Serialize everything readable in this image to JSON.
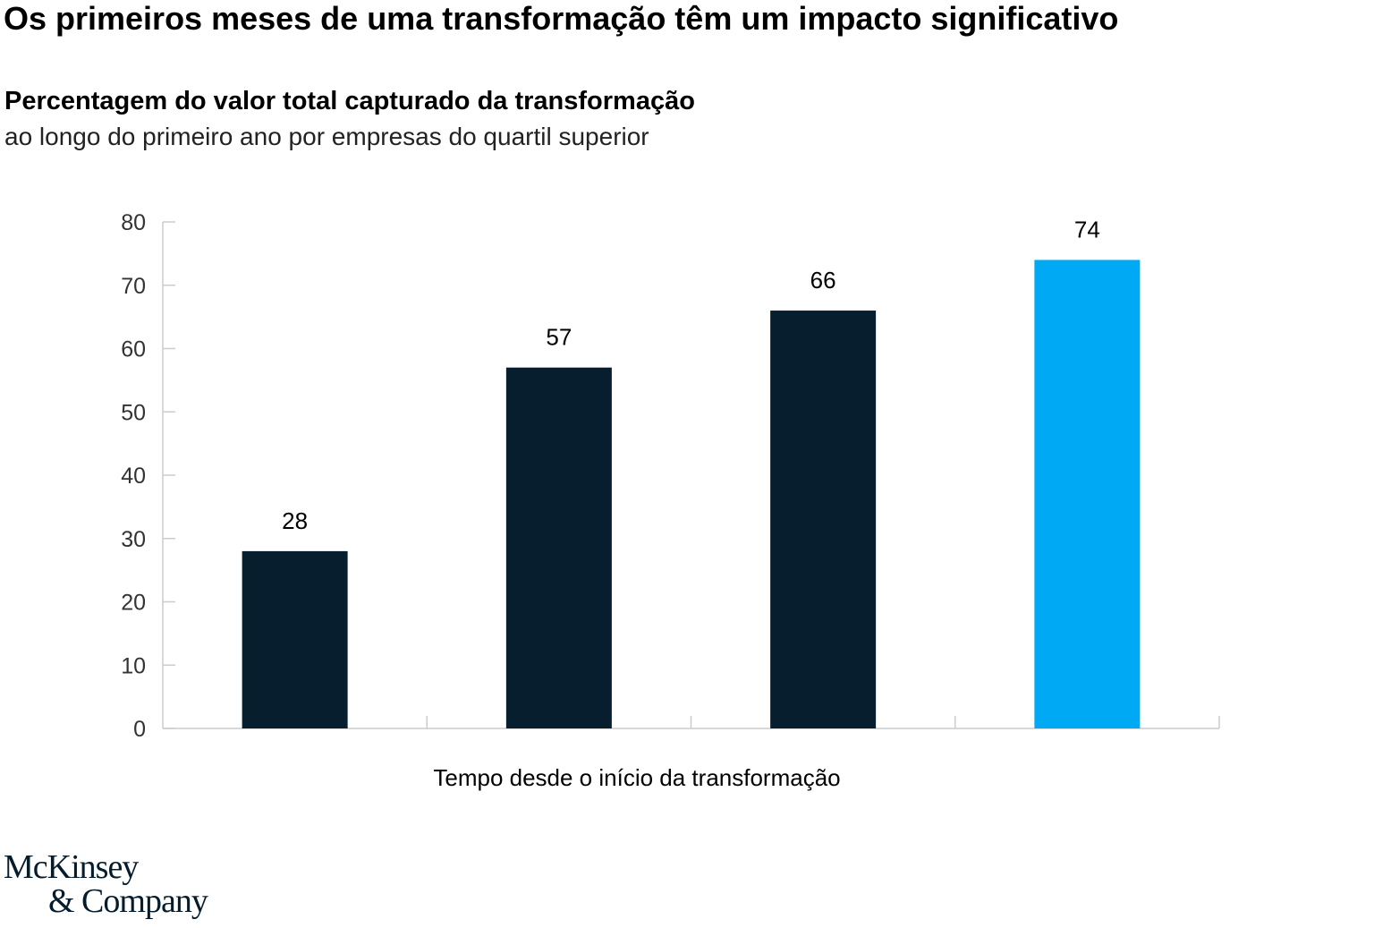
{
  "title": "Os primeiros meses de uma transformação têm um impacto significativo",
  "subtitle": "Percentagem do valor total capturado da transformação",
  "subtitle2": "ao longo do primeiro ano por empresas do quartil superior",
  "logo": {
    "line1": "McKinsey",
    "line2": "& Company"
  },
  "colors": {
    "dark_bar": "#061e2e",
    "highlight_bar": "#00a9f4",
    "axis": "#cccccc",
    "tick_text": "#333333"
  },
  "chart_data": {
    "type": "bar",
    "categories": [
      "",
      "",
      "",
      ""
    ],
    "values": [
      28,
      57,
      66,
      74
    ],
    "data_labels": [
      "28",
      "57",
      "66",
      "74"
    ],
    "highlight_index": 3,
    "xlabel": "Tempo desde o início da transformação",
    "ylabel": "",
    "ylim": [
      0,
      80
    ],
    "yticks": [
      0,
      10,
      20,
      30,
      40,
      50,
      60,
      70,
      80
    ],
    "grid": false
  }
}
